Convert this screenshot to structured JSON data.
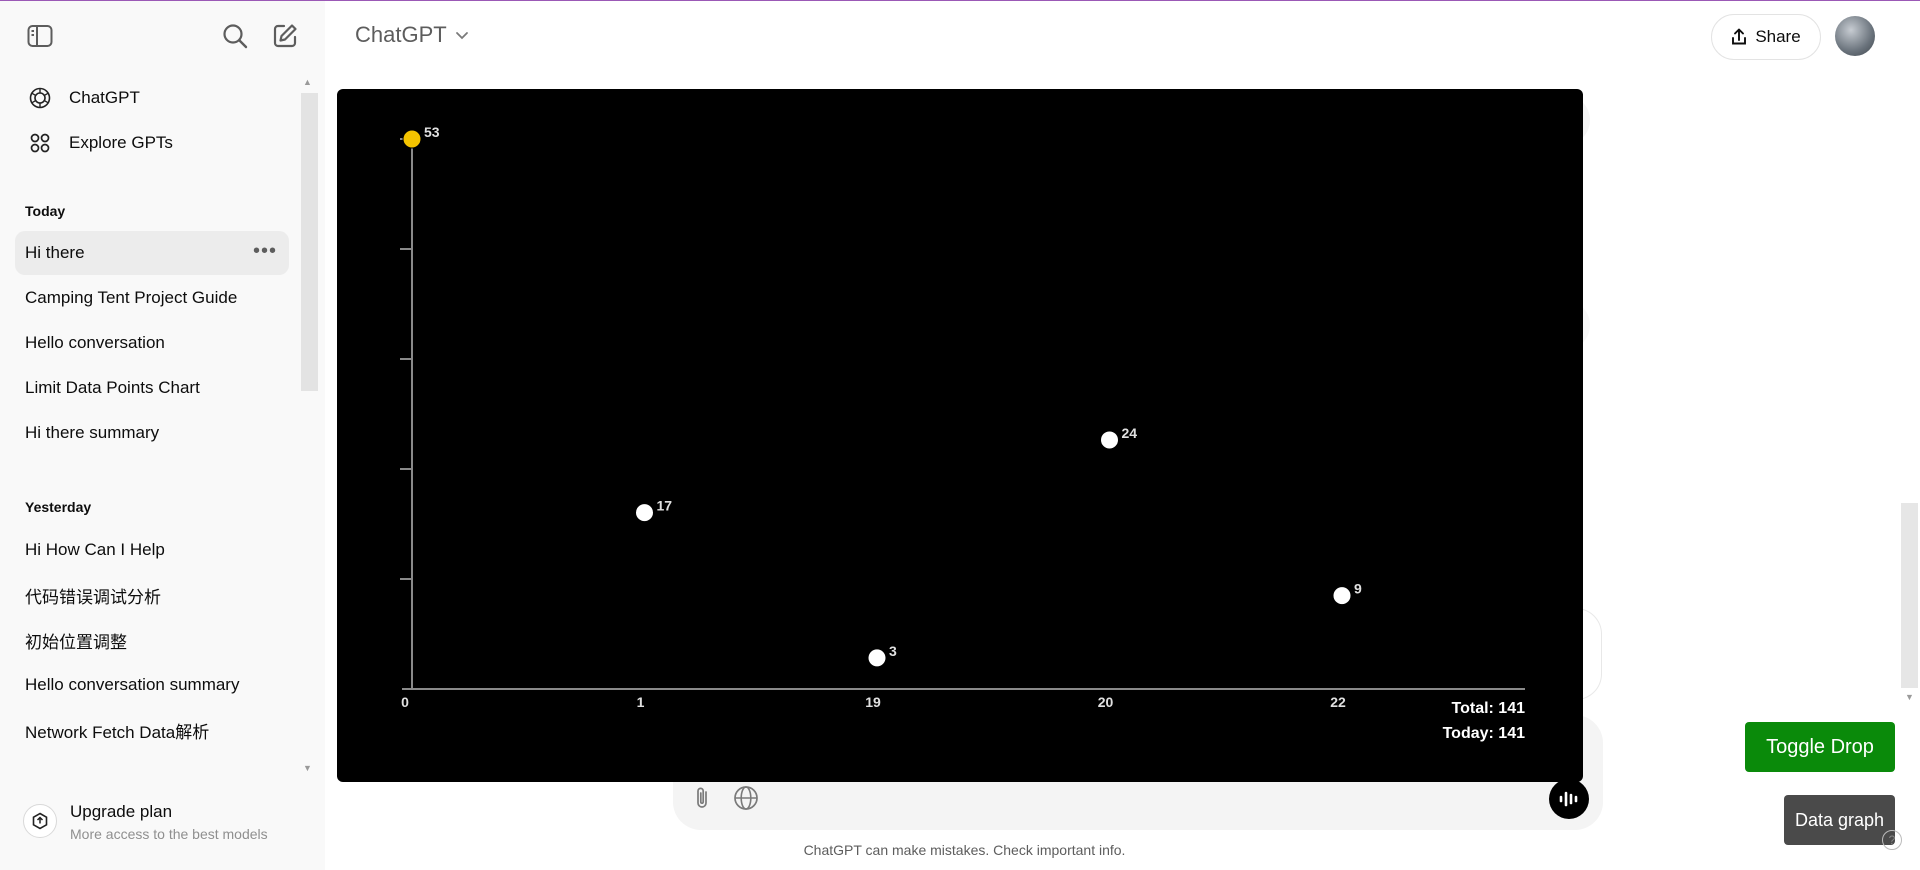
{
  "header": {
    "model_label": "ChatGPT",
    "share_label": "Share"
  },
  "sidebar": {
    "nav": [
      {
        "label": "ChatGPT",
        "icon": "openai-logo-icon"
      },
      {
        "label": "Explore GPTs",
        "icon": "grid-icon"
      }
    ],
    "sections": [
      {
        "heading": "Today",
        "items": [
          "Hi there",
          "Camping Tent Project Guide",
          "Hello conversation",
          "Limit Data Points Chart",
          "Hi there summary"
        ]
      },
      {
        "heading": "Yesterday",
        "items": [
          "Hi How Can I Help",
          "代码错误调试分析",
          "初始位置调整",
          "Hello conversation summary",
          "Network Fetch Data解析"
        ]
      }
    ],
    "active_item": "Hi there",
    "upgrade": {
      "title": "Upgrade plan",
      "subtitle": "More access to the best models"
    }
  },
  "composer": {
    "disclaimer": "ChatGPT can make mistakes. Check important info."
  },
  "buttons": {
    "toggle_drop": "Toggle Drop",
    "data_graph": "Data graph"
  },
  "colors": {
    "highlight_point": "#f5c400",
    "toggle_drop_bg": "#0a8a0a",
    "panel_bg": "#000000"
  },
  "chart_data": {
    "type": "scatter",
    "categories": [
      "0",
      "1",
      "19",
      "20",
      "22"
    ],
    "values": [
      53,
      17,
      3,
      24,
      9
    ],
    "highlighted_index": 0,
    "ylim": [
      0,
      53
    ],
    "grid": false,
    "totals": [
      {
        "label": "Total:",
        "value": "141"
      },
      {
        "label": "Today:",
        "value": "141"
      }
    ]
  }
}
